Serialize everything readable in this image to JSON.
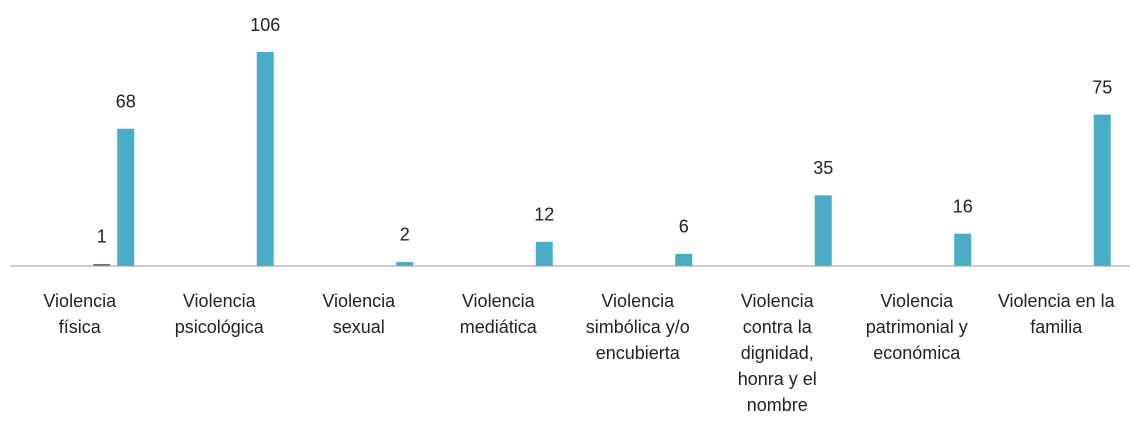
{
  "chart_data": {
    "type": "bar",
    "categories": [
      "Violencia física",
      "Violencia psicológica",
      "Violencia sexual",
      "Violencia mediática",
      "Violencia simbólica y/o encubierta",
      "Violencia contra la dignidad, honra y el nombre",
      "Violencia patrimonial y económica",
      "Violencia en la familia"
    ],
    "series": [
      {
        "color": "#8064a2",
        "values": [
          1,
          null,
          null,
          null,
          null,
          null,
          null,
          null
        ]
      },
      {
        "color": "#4bacc6",
        "values": [
          68,
          106,
          2,
          12,
          6,
          35,
          16,
          75
        ]
      }
    ]
  }
}
